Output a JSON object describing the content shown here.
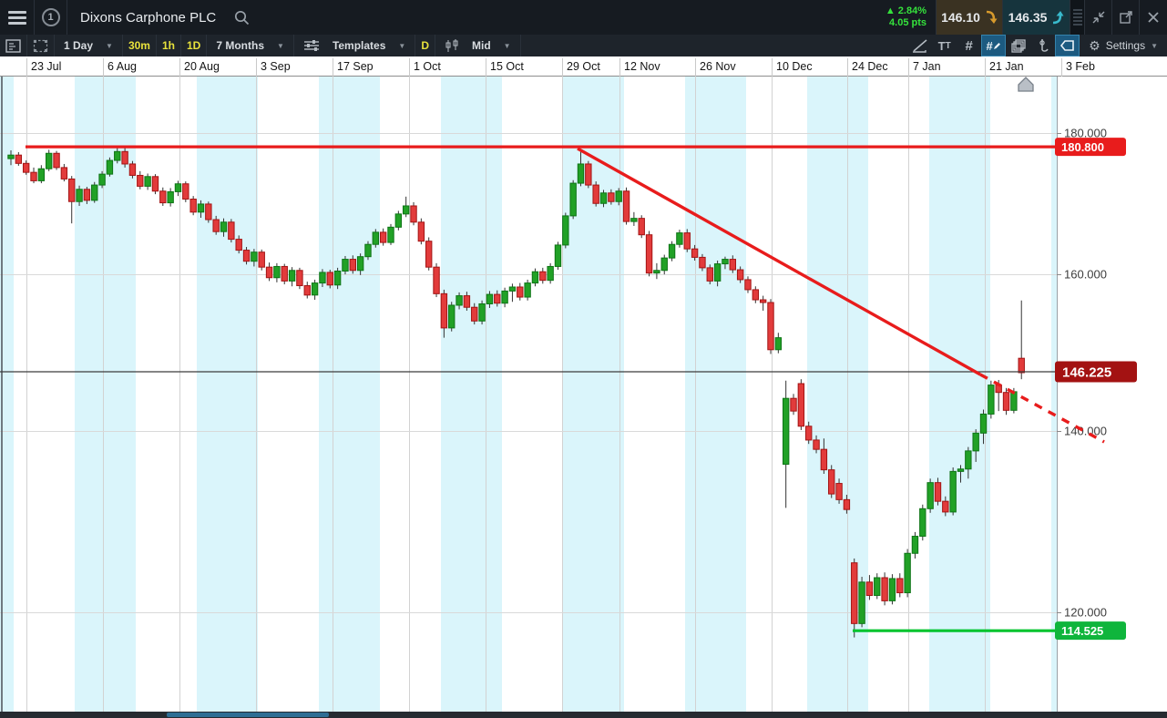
{
  "window": {
    "title": "Dixons Carphone PLC",
    "window_number": "1",
    "change_pct": "2.84%",
    "change_pts": "4.05 pts",
    "up_triangle": "▲",
    "sell_price": "146.10",
    "buy_price": "146.35"
  },
  "toolbar": {
    "interval_dropdown": "1 Day",
    "interval_30m": "30m",
    "interval_1h": "1h",
    "interval_1d": "1D",
    "period_dropdown": "7 Months",
    "templates_label": "Templates",
    "drawing_mode_label": "D",
    "price_mode_label": "Mid",
    "text_tool_label": "T",
    "hash_tool_label": "#",
    "settings_label": "Settings",
    "caret": "▼"
  },
  "colors": {
    "up_fill": "#21a126",
    "up_border": "#0e7416",
    "down_fill": "#e23b3b",
    "down_border": "#a31414",
    "wick": "#333333",
    "stripe": "#daf5fb",
    "gridline": "#d9d9d9",
    "resistance_red": "#e81c1c",
    "support_green": "#00c42e",
    "current_line": "#3c3c3c",
    "current_label_bg": "#a31212",
    "change_green": "#35e23c",
    "sell_arrow": "#d79a2c",
    "buy_arrow": "#38b9cc"
  },
  "chart_data": {
    "type": "candlestick",
    "title": "Dixons Carphone PLC — 1 Day candles, 7 Months, Mid",
    "x_labels": [
      "23 Jul",
      "6 Aug",
      "20 Aug",
      "3 Sep",
      "17 Sep",
      "1 Oct",
      "15 Oct",
      "29 Oct",
      "12 Nov",
      "26 Nov",
      "10 Dec",
      "24 Dec",
      "7 Jan",
      "21 Jan",
      "3 Feb"
    ],
    "y_ticks": [
      "180.000",
      "160.000",
      "140.000",
      "120.000"
    ],
    "y_scale": "log",
    "annotations": {
      "resistance": {
        "label": "180.800",
        "value": 180.8,
        "color": "#e81c1c",
        "type": "horizontal-line"
      },
      "current_price": {
        "label": "146.225",
        "value": 146.225,
        "color": "#3c3c3c",
        "type": "horizontal-line"
      },
      "support": {
        "label": "114.525",
        "value": 114.525,
        "color": "#00c42e",
        "type": "horizontal-line"
      },
      "trendline": {
        "color": "#e81c1c",
        "style": "solid then dashed projection",
        "from_price": 180.4,
        "to_price": 139.0
      }
    },
    "candles_format": [
      "open",
      "high",
      "low",
      "close"
    ],
    "candles": [
      [
        178.8,
        180.2,
        177.7,
        179.4
      ],
      [
        179.4,
        179.9,
        177.6,
        178.0
      ],
      [
        178.0,
        178.5,
        176.1,
        176.5
      ],
      [
        176.5,
        177.3,
        174.7,
        175.1
      ],
      [
        175.1,
        177.7,
        174.7,
        177.1
      ],
      [
        177.1,
        180.3,
        176.7,
        179.7
      ],
      [
        179.7,
        180.1,
        176.9,
        177.3
      ],
      [
        177.3,
        177.9,
        175.0,
        175.4
      ],
      [
        175.4,
        175.9,
        168.2,
        171.7
      ],
      [
        171.7,
        174.3,
        171.0,
        173.7
      ],
      [
        173.7,
        174.1,
        171.3,
        171.9
      ],
      [
        171.9,
        174.9,
        171.5,
        174.4
      ],
      [
        174.4,
        176.7,
        173.9,
        176.2
      ],
      [
        176.2,
        179.0,
        175.8,
        178.5
      ],
      [
        178.5,
        180.7,
        178.0,
        180.0
      ],
      [
        180.0,
        180.6,
        177.3,
        177.9
      ],
      [
        177.9,
        178.4,
        175.5,
        176.0
      ],
      [
        176.0,
        176.7,
        173.7,
        174.2
      ],
      [
        174.2,
        176.3,
        173.6,
        175.8
      ],
      [
        175.8,
        176.2,
        172.9,
        173.4
      ],
      [
        173.4,
        174.0,
        171.0,
        171.5
      ],
      [
        171.5,
        173.9,
        170.9,
        173.3
      ],
      [
        173.3,
        175.1,
        172.6,
        174.6
      ],
      [
        174.6,
        175.0,
        171.6,
        172.1
      ],
      [
        172.1,
        172.6,
        169.5,
        170.0
      ],
      [
        170.0,
        171.9,
        169.1,
        171.3
      ],
      [
        171.3,
        171.7,
        168.3,
        168.8
      ],
      [
        168.8,
        169.4,
        166.4,
        166.9
      ],
      [
        166.9,
        169.0,
        166.1,
        168.4
      ],
      [
        168.4,
        168.9,
        165.2,
        165.7
      ],
      [
        165.7,
        166.3,
        163.5,
        164.0
      ],
      [
        164.0,
        164.5,
        161.8,
        162.3
      ],
      [
        162.3,
        164.2,
        161.5,
        163.7
      ],
      [
        163.7,
        164.1,
        160.9,
        161.4
      ],
      [
        161.4,
        162.1,
        159.3,
        159.8
      ],
      [
        159.8,
        162.0,
        159.1,
        161.5
      ],
      [
        161.5,
        161.9,
        158.8,
        159.3
      ],
      [
        159.3,
        161.4,
        158.5,
        160.9
      ],
      [
        160.9,
        161.3,
        158.1,
        158.6
      ],
      [
        158.6,
        159.2,
        156.7,
        157.2
      ],
      [
        157.2,
        159.5,
        156.5,
        159.0
      ],
      [
        159.0,
        161.1,
        158.4,
        160.6
      ],
      [
        160.6,
        161.0,
        158.2,
        158.7
      ],
      [
        158.7,
        161.3,
        158.1,
        160.8
      ],
      [
        160.8,
        163.1,
        160.3,
        162.6
      ],
      [
        162.6,
        163.2,
        160.4,
        160.9
      ],
      [
        160.9,
        163.5,
        160.2,
        163.0
      ],
      [
        163.0,
        165.4,
        162.5,
        164.9
      ],
      [
        164.9,
        167.3,
        164.4,
        166.8
      ],
      [
        166.8,
        167.4,
        164.7,
        165.2
      ],
      [
        165.2,
        168.1,
        164.8,
        167.6
      ],
      [
        167.6,
        170.2,
        167.1,
        169.7
      ],
      [
        169.7,
        172.5,
        169.2,
        171.0
      ],
      [
        171.0,
        171.6,
        167.9,
        168.4
      ],
      [
        168.4,
        169.0,
        164.9,
        165.4
      ],
      [
        165.4,
        166.0,
        160.9,
        161.4
      ],
      [
        161.4,
        162.0,
        156.9,
        157.4
      ],
      [
        157.4,
        158.0,
        151.0,
        152.4
      ],
      [
        152.4,
        156.2,
        151.9,
        155.7
      ],
      [
        155.7,
        157.6,
        155.1,
        157.1
      ],
      [
        157.1,
        157.7,
        154.9,
        155.4
      ],
      [
        155.4,
        156.0,
        152.9,
        153.4
      ],
      [
        153.4,
        156.4,
        152.9,
        155.9
      ],
      [
        155.9,
        157.8,
        155.3,
        157.3
      ],
      [
        157.3,
        157.9,
        155.5,
        156.0
      ],
      [
        156.0,
        158.3,
        155.4,
        157.8
      ],
      [
        157.8,
        158.9,
        156.2,
        158.4
      ],
      [
        158.4,
        159.0,
        156.4,
        156.9
      ],
      [
        156.9,
        159.5,
        156.4,
        159.0
      ],
      [
        159.0,
        161.2,
        158.5,
        160.7
      ],
      [
        160.7,
        161.3,
        158.9,
        159.4
      ],
      [
        159.4,
        162.0,
        158.9,
        161.5
      ],
      [
        161.5,
        165.3,
        161.0,
        164.8
      ],
      [
        164.8,
        169.9,
        164.3,
        169.4
      ],
      [
        169.4,
        175.2,
        168.9,
        174.7
      ],
      [
        174.7,
        180.1,
        174.2,
        177.9
      ],
      [
        177.9,
        178.4,
        173.9,
        174.4
      ],
      [
        174.4,
        175.0,
        170.9,
        171.4
      ],
      [
        171.4,
        173.6,
        170.8,
        173.1
      ],
      [
        173.1,
        173.7,
        171.2,
        171.7
      ],
      [
        171.7,
        173.9,
        171.1,
        173.4
      ],
      [
        173.4,
        174.0,
        168.0,
        168.5
      ],
      [
        168.5,
        170.0,
        167.8,
        169.0
      ],
      [
        169.0,
        169.5,
        165.9,
        166.4
      ],
      [
        166.4,
        167.0,
        160.0,
        160.5
      ],
      [
        160.5,
        162.0,
        159.6,
        160.9
      ],
      [
        160.9,
        163.3,
        160.3,
        162.8
      ],
      [
        162.8,
        165.4,
        162.3,
        164.9
      ],
      [
        164.9,
        167.2,
        164.4,
        166.7
      ],
      [
        166.7,
        167.3,
        163.7,
        164.2
      ],
      [
        164.2,
        164.8,
        162.4,
        162.9
      ],
      [
        162.9,
        163.4,
        160.8,
        161.3
      ],
      [
        161.3,
        161.8,
        158.8,
        159.3
      ],
      [
        159.3,
        162.4,
        158.5,
        161.9
      ],
      [
        161.9,
        163.0,
        161.1,
        162.6
      ],
      [
        162.6,
        163.2,
        160.5,
        161.0
      ],
      [
        161.0,
        161.5,
        159.0,
        159.5
      ],
      [
        159.5,
        160.0,
        157.5,
        158.0
      ],
      [
        158.0,
        158.5,
        156.0,
        156.5
      ],
      [
        156.5,
        157.1,
        154.9,
        156.1
      ],
      [
        156.1,
        156.6,
        148.7,
        149.3
      ],
      [
        149.3,
        151.7,
        148.8,
        151.0
      ],
      [
        134.0,
        145.0,
        128.6,
        142.6
      ],
      [
        142.6,
        143.2,
        140.4,
        140.9
      ],
      [
        144.6,
        145.2,
        138.4,
        138.9
      ],
      [
        138.9,
        139.5,
        136.6,
        137.1
      ],
      [
        137.1,
        137.7,
        135.4,
        135.9
      ],
      [
        135.9,
        137.3,
        132.8,
        133.3
      ],
      [
        133.3,
        133.9,
        129.8,
        130.3
      ],
      [
        131.6,
        132.2,
        129.1,
        129.6
      ],
      [
        129.6,
        130.2,
        127.9,
        128.4
      ],
      [
        122.1,
        122.6,
        113.8,
        115.3
      ],
      [
        115.3,
        120.5,
        114.9,
        119.9
      ],
      [
        119.9,
        120.7,
        117.9,
        118.4
      ],
      [
        118.4,
        120.9,
        118.0,
        120.4
      ],
      [
        120.4,
        121.0,
        117.3,
        117.8
      ],
      [
        117.8,
        120.8,
        117.4,
        120.3
      ],
      [
        120.3,
        120.9,
        118.2,
        118.7
      ],
      [
        118.7,
        123.7,
        118.2,
        123.2
      ],
      [
        123.2,
        125.7,
        122.6,
        125.2
      ],
      [
        125.2,
        129.0,
        124.7,
        128.5
      ],
      [
        128.5,
        132.2,
        128.0,
        131.7
      ],
      [
        131.7,
        132.3,
        128.9,
        129.4
      ],
      [
        129.4,
        130.0,
        127.6,
        128.1
      ],
      [
        128.1,
        133.6,
        127.7,
        133.1
      ],
      [
        133.1,
        133.9,
        131.7,
        133.4
      ],
      [
        133.4,
        136.2,
        132.2,
        135.7
      ],
      [
        135.7,
        138.5,
        134.3,
        138.0
      ],
      [
        138.0,
        141.1,
        136.6,
        140.5
      ],
      [
        140.5,
        145.0,
        139.9,
        144.4
      ],
      [
        144.4,
        145.1,
        140.9,
        143.4
      ],
      [
        143.4,
        144.0,
        140.4,
        141.0
      ],
      [
        141.0,
        144.0,
        140.6,
        143.5
      ],
      [
        148.1,
        156.4,
        145.2,
        146.1
      ]
    ]
  }
}
